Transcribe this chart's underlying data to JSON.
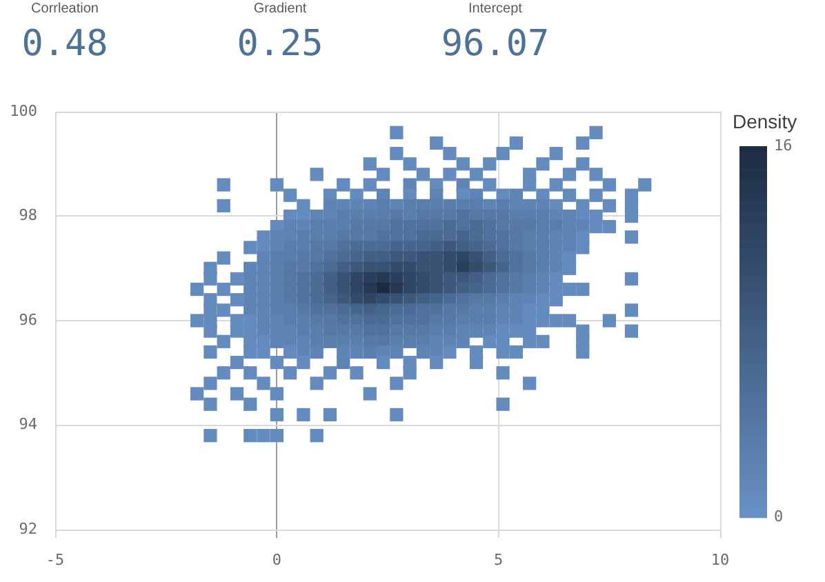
{
  "chart_data": [
    {
      "type": "other",
      "annotations": [
        "Corrleation",
        "0.48",
        "Gradient",
        "0.25",
        "Intercept",
        "96.07"
      ],
      "color": "#4d7298"
    },
    {
      "type": "scatter",
      "marker": "square",
      "x": [
        2.7,
        7.2,
        3.6,
        5.4,
        6.9,
        2.7,
        3.9,
        5.1,
        6.3,
        2.1,
        3.0,
        4.2,
        4.8,
        6.0,
        6.9,
        0.9,
        2.4,
        3.3,
        3.9,
        4.5,
        5.7,
        6.6,
        7.2,
        -1.2,
        0.0,
        1.5,
        2.1,
        3.0,
        3.6,
        4.2,
        4.8,
        5.7,
        6.3,
        7.5,
        8.3,
        0.3,
        1.2,
        1.8,
        2.4,
        3.0,
        3.6,
        4.2,
        4.5,
        5.1,
        5.4,
        6.0,
        6.6,
        7.2,
        8.0,
        -1.2,
        0.6,
        1.2,
        1.5,
        1.8,
        2.1,
        2.4,
        2.7,
        3.0,
        3.3,
        3.6,
        3.9,
        4.2,
        4.5,
        4.8,
        5.1,
        5.4,
        5.7,
        6.0,
        6.3,
        6.9,
        7.5,
        8.0,
        0.3,
        0.6,
        0.9,
        1.2,
        1.5,
        1.8,
        2.1,
        2.4,
        2.7,
        3.0,
        3.3,
        3.6,
        3.9,
        4.2,
        4.5,
        4.8,
        5.1,
        5.4,
        5.7,
        6.0,
        6.3,
        6.6,
        6.9,
        7.2,
        8.0,
        0.0,
        0.3,
        0.6,
        0.9,
        1.2,
        1.5,
        1.8,
        2.1,
        2.4,
        2.7,
        3.0,
        3.3,
        3.6,
        3.9,
        4.2,
        4.5,
        4.8,
        5.1,
        5.4,
        5.7,
        6.0,
        6.3,
        6.6,
        6.9,
        7.2,
        7.5,
        -0.3,
        0.0,
        0.3,
        0.6,
        0.9,
        1.2,
        1.5,
        1.8,
        2.1,
        2.4,
        2.7,
        3.0,
        3.3,
        3.6,
        3.9,
        4.2,
        4.5,
        4.8,
        5.1,
        5.4,
        5.7,
        6.0,
        6.3,
        6.6,
        6.9,
        8.0,
        -0.6,
        -0.3,
        0.0,
        0.3,
        0.6,
        0.9,
        1.2,
        1.5,
        1.8,
        2.1,
        2.4,
        2.7,
        3.0,
        3.3,
        3.6,
        3.9,
        4.2,
        4.5,
        4.8,
        5.1,
        5.4,
        5.7,
        6.0,
        6.3,
        6.6,
        6.9,
        -1.2,
        -0.3,
        0.0,
        0.3,
        0.6,
        0.9,
        1.2,
        1.5,
        1.8,
        2.1,
        2.4,
        2.7,
        3.0,
        3.3,
        3.6,
        3.9,
        4.2,
        4.5,
        4.8,
        5.1,
        5.4,
        5.7,
        6.0,
        6.3,
        6.6,
        -1.5,
        -0.6,
        -0.3,
        0.0,
        0.3,
        0.6,
        0.9,
        1.2,
        1.5,
        1.8,
        2.1,
        2.4,
        2.7,
        3.0,
        3.3,
        3.6,
        3.9,
        4.2,
        4.5,
        4.8,
        5.1,
        5.4,
        5.7,
        6.0,
        6.3,
        6.6,
        -1.5,
        -0.9,
        -0.6,
        -0.3,
        0.0,
        0.3,
        0.6,
        0.9,
        1.2,
        1.5,
        1.8,
        2.1,
        2.4,
        2.7,
        3.0,
        3.3,
        3.6,
        3.9,
        4.2,
        4.5,
        4.8,
        5.1,
        5.4,
        5.7,
        6.0,
        6.3,
        8.0,
        -1.8,
        -1.2,
        -0.6,
        -0.3,
        0.0,
        0.3,
        0.6,
        0.9,
        1.2,
        1.5,
        1.8,
        2.1,
        2.4,
        2.7,
        3.0,
        3.3,
        3.6,
        3.9,
        4.2,
        4.5,
        4.8,
        5.1,
        5.4,
        5.7,
        6.0,
        6.3,
        6.6,
        6.9,
        -1.5,
        -0.9,
        -0.6,
        -0.3,
        0.0,
        0.3,
        0.6,
        0.9,
        1.2,
        1.5,
        1.8,
        2.1,
        2.4,
        2.7,
        3.0,
        3.3,
        3.6,
        3.9,
        4.2,
        4.5,
        4.8,
        5.1,
        5.4,
        5.7,
        6.0,
        6.3,
        -1.5,
        -1.2,
        -0.6,
        -0.3,
        0.0,
        0.3,
        0.6,
        0.9,
        1.2,
        1.5,
        1.8,
        2.1,
        2.4,
        2.7,
        3.0,
        3.3,
        3.6,
        3.9,
        4.2,
        4.5,
        4.8,
        5.1,
        5.4,
        5.7,
        6.0,
        8.0,
        -1.8,
        -1.5,
        -0.9,
        -0.6,
        -0.3,
        0.0,
        0.3,
        0.6,
        0.9,
        1.2,
        1.5,
        1.8,
        2.1,
        2.4,
        2.7,
        3.0,
        3.3,
        3.6,
        3.9,
        4.2,
        4.5,
        4.8,
        5.1,
        5.4,
        5.7,
        6.0,
        6.3,
        6.6,
        7.5,
        -1.5,
        -0.9,
        -0.6,
        -0.3,
        0.0,
        0.3,
        0.6,
        0.9,
        1.2,
        1.5,
        1.8,
        2.1,
        2.4,
        2.7,
        3.0,
        3.3,
        3.6,
        3.9,
        4.2,
        4.5,
        4.8,
        5.1,
        5.4,
        5.7,
        6.9,
        8.0,
        -1.2,
        -0.6,
        -0.3,
        0.0,
        0.3,
        0.6,
        0.9,
        1.2,
        1.5,
        1.8,
        2.1,
        2.4,
        2.7,
        3.0,
        3.3,
        3.6,
        3.9,
        4.2,
        4.8,
        5.1,
        5.7,
        6.0,
        6.9,
        -1.5,
        -0.6,
        -0.3,
        0.3,
        0.6,
        0.9,
        1.5,
        1.8,
        2.1,
        2.4,
        2.7,
        3.3,
        3.6,
        3.9,
        4.5,
        5.1,
        5.4,
        6.9,
        -0.9,
        0.0,
        0.6,
        1.5,
        2.4,
        3.0,
        3.6,
        4.5,
        -1.2,
        -0.6,
        0.3,
        1.2,
        1.8,
        3.0,
        5.1,
        -1.5,
        -0.3,
        0.9,
        2.7,
        5.7,
        -1.8,
        -0.9,
        0.0,
        2.1,
        -1.5,
        -0.6,
        5.1,
        0.0,
        0.6,
        1.2,
        2.7,
        -1.5,
        -0.6,
        -0.3,
        0.0,
        0.9
      ],
      "values": [
        99.6,
        99.6,
        99.4,
        99.4,
        99.4,
        99.2,
        99.2,
        99.2,
        99.2,
        99.0,
        99.0,
        99.0,
        99.0,
        99.0,
        99.0,
        98.8,
        98.8,
        98.8,
        98.8,
        98.8,
        98.8,
        98.8,
        98.8,
        98.6,
        98.6,
        98.6,
        98.6,
        98.6,
        98.6,
        98.6,
        98.6,
        98.6,
        98.6,
        98.6,
        98.6,
        98.4,
        98.4,
        98.4,
        98.4,
        98.4,
        98.4,
        98.4,
        98.4,
        98.4,
        98.4,
        98.4,
        98.4,
        98.4,
        98.4,
        98.2,
        98.2,
        98.2,
        98.2,
        98.2,
        98.2,
        98.2,
        98.2,
        98.2,
        98.2,
        98.2,
        98.2,
        98.2,
        98.2,
        98.2,
        98.2,
        98.2,
        98.2,
        98.2,
        98.2,
        98.2,
        98.2,
        98.2,
        98.0,
        98.0,
        98.0,
        98.0,
        98.0,
        98.0,
        98.0,
        98.0,
        98.0,
        98.0,
        98.0,
        98.0,
        98.0,
        98.0,
        98.0,
        98.0,
        98.0,
        98.0,
        98.0,
        98.0,
        98.0,
        98.0,
        98.0,
        98.0,
        98.0,
        97.8,
        97.8,
        97.8,
        97.8,
        97.8,
        97.8,
        97.8,
        97.8,
        97.8,
        97.8,
        97.8,
        97.8,
        97.8,
        97.8,
        97.8,
        97.8,
        97.8,
        97.8,
        97.8,
        97.8,
        97.8,
        97.8,
        97.8,
        97.8,
        97.8,
        97.8,
        97.6,
        97.6,
        97.6,
        97.6,
        97.6,
        97.6,
        97.6,
        97.6,
        97.6,
        97.6,
        97.6,
        97.6,
        97.6,
        97.6,
        97.6,
        97.6,
        97.6,
        97.6,
        97.6,
        97.6,
        97.6,
        97.6,
        97.6,
        97.6,
        97.6,
        97.6,
        97.4,
        97.4,
        97.4,
        97.4,
        97.4,
        97.4,
        97.4,
        97.4,
        97.4,
        97.4,
        97.4,
        97.4,
        97.4,
        97.4,
        97.4,
        97.4,
        97.4,
        97.4,
        97.4,
        97.4,
        97.4,
        97.4,
        97.4,
        97.4,
        97.4,
        97.4,
        97.2,
        97.2,
        97.2,
        97.2,
        97.2,
        97.2,
        97.2,
        97.2,
        97.2,
        97.2,
        97.2,
        97.2,
        97.2,
        97.2,
        97.2,
        97.2,
        97.2,
        97.2,
        97.2,
        97.2,
        97.2,
        97.2,
        97.2,
        97.2,
        97.2,
        97.0,
        97.0,
        97.0,
        97.0,
        97.0,
        97.0,
        97.0,
        97.0,
        97.0,
        97.0,
        97.0,
        97.0,
        97.0,
        97.0,
        97.0,
        97.0,
        97.0,
        97.0,
        97.0,
        97.0,
        97.0,
        97.0,
        97.0,
        97.0,
        97.0,
        97.0,
        96.8,
        96.8,
        96.8,
        96.8,
        96.8,
        96.8,
        96.8,
        96.8,
        96.8,
        96.8,
        96.8,
        96.8,
        96.8,
        96.8,
        96.8,
        96.8,
        96.8,
        96.8,
        96.8,
        96.8,
        96.8,
        96.8,
        96.8,
        96.8,
        96.8,
        96.8,
        96.8,
        96.6,
        96.6,
        96.6,
        96.6,
        96.6,
        96.6,
        96.6,
        96.6,
        96.6,
        96.6,
        96.6,
        96.6,
        96.6,
        96.6,
        96.6,
        96.6,
        96.6,
        96.6,
        96.6,
        96.6,
        96.6,
        96.6,
        96.6,
        96.6,
        96.6,
        96.6,
        96.6,
        96.6,
        96.4,
        96.4,
        96.4,
        96.4,
        96.4,
        96.4,
        96.4,
        96.4,
        96.4,
        96.4,
        96.4,
        96.4,
        96.4,
        96.4,
        96.4,
        96.4,
        96.4,
        96.4,
        96.4,
        96.4,
        96.4,
        96.4,
        96.4,
        96.4,
        96.4,
        96.4,
        96.2,
        96.2,
        96.2,
        96.2,
        96.2,
        96.2,
        96.2,
        96.2,
        96.2,
        96.2,
        96.2,
        96.2,
        96.2,
        96.2,
        96.2,
        96.2,
        96.2,
        96.2,
        96.2,
        96.2,
        96.2,
        96.2,
        96.2,
        96.2,
        96.2,
        96.2,
        96.0,
        96.0,
        96.0,
        96.0,
        96.0,
        96.0,
        96.0,
        96.0,
        96.0,
        96.0,
        96.0,
        96.0,
        96.0,
        96.0,
        96.0,
        96.0,
        96.0,
        96.0,
        96.0,
        96.0,
        96.0,
        96.0,
        96.0,
        96.0,
        96.0,
        96.0,
        96.0,
        96.0,
        96.0,
        95.8,
        95.8,
        95.8,
        95.8,
        95.8,
        95.8,
        95.8,
        95.8,
        95.8,
        95.8,
        95.8,
        95.8,
        95.8,
        95.8,
        95.8,
        95.8,
        95.8,
        95.8,
        95.8,
        95.8,
        95.8,
        95.8,
        95.8,
        95.8,
        95.8,
        95.8,
        95.6,
        95.6,
        95.6,
        95.6,
        95.6,
        95.6,
        95.6,
        95.6,
        95.6,
        95.6,
        95.6,
        95.6,
        95.6,
        95.6,
        95.6,
        95.6,
        95.6,
        95.6,
        95.6,
        95.6,
        95.6,
        95.6,
        95.6,
        95.4,
        95.4,
        95.4,
        95.4,
        95.4,
        95.4,
        95.4,
        95.4,
        95.4,
        95.4,
        95.4,
        95.4,
        95.4,
        95.4,
        95.4,
        95.4,
        95.4,
        95.4,
        95.2,
        95.2,
        95.2,
        95.2,
        95.2,
        95.2,
        95.2,
        95.2,
        95.0,
        95.0,
        95.0,
        95.0,
        95.0,
        95.0,
        95.0,
        94.8,
        94.8,
        94.8,
        94.8,
        94.8,
        94.6,
        94.6,
        94.6,
        94.6,
        94.4,
        94.4,
        94.4,
        94.2,
        94.2,
        94.2,
        94.2,
        93.8,
        93.8,
        93.8,
        93.8,
        93.8
      ],
      "cvalues": [
        1,
        1,
        1,
        1,
        1,
        1,
        1,
        1,
        1,
        1,
        1,
        1,
        1,
        1,
        1,
        1,
        1,
        1,
        1,
        1,
        1,
        1,
        1,
        1,
        1,
        1,
        1,
        2,
        1,
        2,
        1,
        1,
        1,
        1,
        1,
        1,
        1,
        1,
        2,
        1,
        2,
        1,
        2,
        1,
        2,
        1,
        1,
        1,
        1,
        1,
        1,
        2,
        2,
        2,
        2,
        3,
        2,
        3,
        3,
        3,
        3,
        3,
        3,
        2,
        3,
        2,
        2,
        2,
        1,
        1,
        1,
        1,
        1,
        1,
        2,
        2,
        3,
        3,
        3,
        3,
        4,
        3,
        4,
        4,
        4,
        5,
        4,
        4,
        4,
        3,
        3,
        3,
        2,
        2,
        1,
        1,
        1,
        1,
        2,
        2,
        3,
        3,
        3,
        4,
        4,
        4,
        5,
        5,
        5,
        5,
        6,
        5,
        6,
        5,
        4,
        4,
        4,
        3,
        3,
        2,
        2,
        1,
        1,
        1,
        2,
        2,
        3,
        3,
        3,
        4,
        4,
        4,
        5,
        5,
        5,
        6,
        6,
        6,
        7,
        6,
        5,
        5,
        4,
        3,
        3,
        2,
        2,
        1,
        1,
        1,
        1,
        2,
        3,
        3,
        4,
        4,
        5,
        6,
        6,
        6,
        7,
        7,
        7,
        8,
        9,
        8,
        7,
        6,
        5,
        4,
        3,
        3,
        2,
        2,
        1,
        1,
        2,
        3,
        3,
        4,
        4,
        5,
        6,
        7,
        8,
        8,
        9,
        9,
        10,
        10,
        11,
        12,
        10,
        8,
        6,
        5,
        4,
        3,
        2,
        1,
        1,
        2,
        2,
        3,
        4,
        4,
        5,
        6,
        8,
        9,
        10,
        10,
        11,
        11,
        10,
        10,
        11,
        13,
        11,
        9,
        7,
        5,
        4,
        3,
        2,
        1,
        1,
        1,
        2,
        2,
        3,
        4,
        5,
        6,
        8,
        10,
        12,
        13,
        14,
        13,
        12,
        11,
        10,
        9,
        9,
        8,
        6,
        5,
        4,
        3,
        2,
        1,
        1,
        1,
        1,
        2,
        2,
        3,
        4,
        5,
        6,
        8,
        10,
        12,
        14,
        16,
        14,
        12,
        11,
        10,
        9,
        8,
        7,
        6,
        5,
        4,
        3,
        2,
        1,
        1,
        1,
        1,
        1,
        2,
        2,
        3,
        4,
        5,
        6,
        7,
        9,
        11,
        12,
        11,
        10,
        9,
        8,
        7,
        6,
        5,
        4,
        4,
        3,
        2,
        2,
        1,
        1,
        1,
        1,
        2,
        2,
        3,
        3,
        4,
        5,
        5,
        6,
        7,
        8,
        7,
        6,
        6,
        5,
        5,
        4,
        4,
        3,
        3,
        2,
        2,
        1,
        1,
        1,
        1,
        1,
        1,
        1,
        2,
        2,
        3,
        3,
        4,
        4,
        5,
        5,
        6,
        6,
        5,
        5,
        5,
        4,
        4,
        3,
        3,
        3,
        2,
        2,
        1,
        1,
        1,
        1,
        1,
        1,
        1,
        1,
        2,
        2,
        2,
        3,
        3,
        4,
        4,
        4,
        5,
        5,
        4,
        4,
        4,
        3,
        3,
        2,
        2,
        2,
        1,
        1,
        1,
        1,
        1,
        1,
        1,
        1,
        2,
        2,
        2,
        3,
        3,
        3,
        3,
        4,
        4,
        3,
        3,
        3,
        2,
        2,
        2,
        1,
        1,
        1,
        1,
        1,
        1,
        1,
        1,
        1,
        2,
        2,
        2,
        2,
        3,
        2,
        2,
        2,
        2,
        1,
        1,
        1,
        1,
        1,
        1,
        1,
        1,
        2,
        1,
        1,
        1,
        1,
        1,
        1,
        1,
        1,
        1,
        1,
        1,
        1,
        1,
        1,
        1,
        1,
        1,
        1,
        1,
        1,
        1,
        1,
        1,
        1,
        1,
        1,
        1,
        1,
        1,
        1,
        1,
        1
      ],
      "xlim": [
        -5,
        10
      ],
      "xticks": [
        -5,
        0,
        5,
        10
      ],
      "ylim": [
        92,
        100
      ],
      "yticks": [
        92,
        94,
        96,
        98,
        100
      ],
      "grid": true,
      "clabel": "Density",
      "clim": [
        0,
        16
      ],
      "cticks": [
        0,
        16
      ]
    }
  ]
}
